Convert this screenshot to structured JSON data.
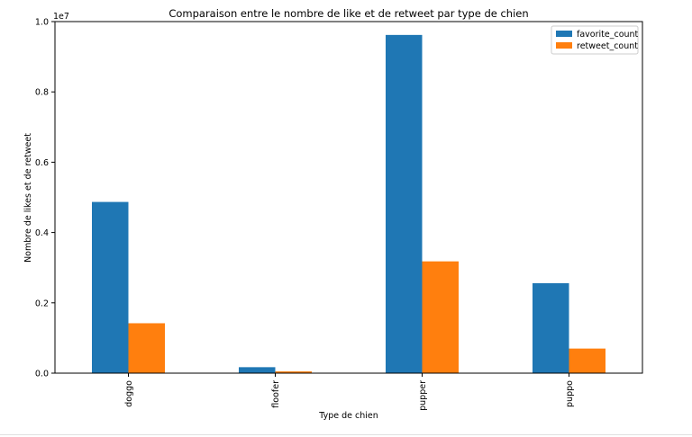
{
  "chart_data": {
    "type": "bar",
    "title": "Comparaison entre le nombre de like et de retweet par type de chien",
    "xlabel": "Type de chien",
    "ylabel": "Nombre de likes et de retweet",
    "scale_note": "1e7",
    "categories": [
      "doggo",
      "floofer",
      "pupper",
      "puppo"
    ],
    "ylim": [
      0,
      1.0
    ],
    "yticks": [
      "0.0",
      "0.2",
      "0.4",
      "0.6",
      "0.8",
      "1.0"
    ],
    "grid": false,
    "legend_position": "top-right",
    "series": [
      {
        "name": "favorite_count",
        "color": "#1f77b4",
        "values": [
          0.487,
          0.017,
          0.962,
          0.256
        ]
      },
      {
        "name": "retweet_count",
        "color": "#ff7f0e",
        "values": [
          0.142,
          0.005,
          0.318,
          0.07
        ]
      }
    ]
  }
}
